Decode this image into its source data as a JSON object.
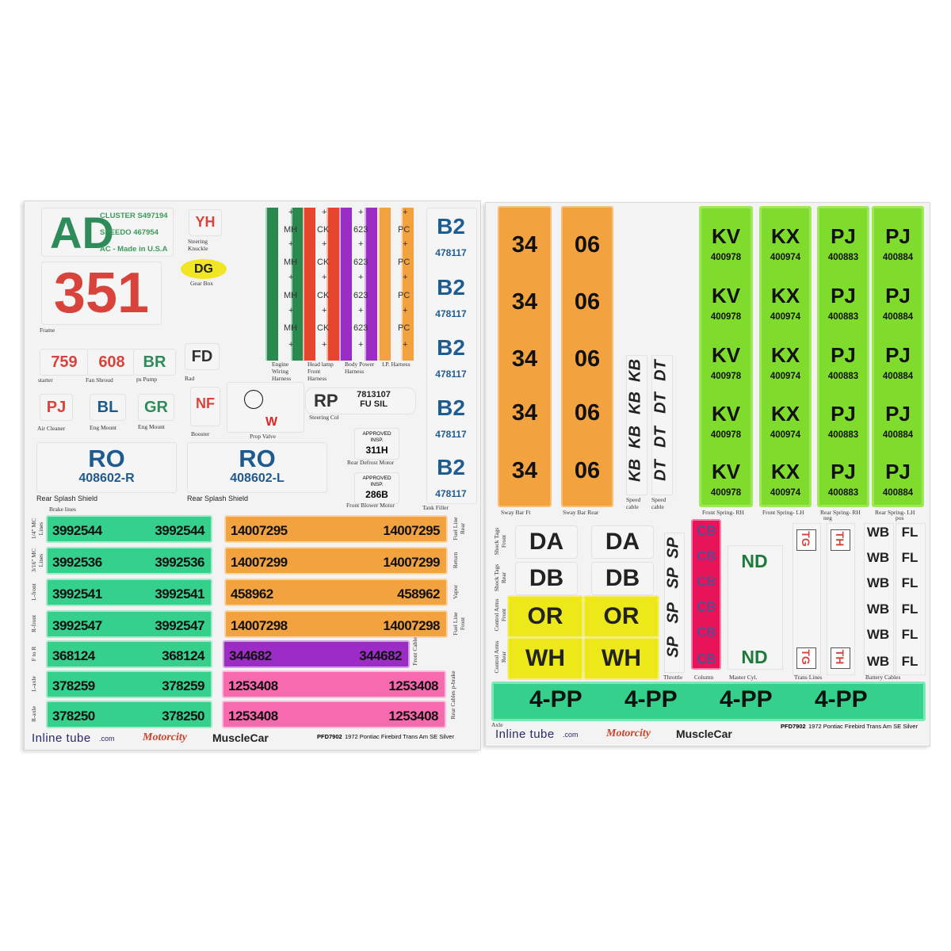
{
  "left_sheet": {
    "ad": {
      "code": "AD",
      "lines": [
        "CLUSTER S497194",
        "SPEEDO 467954",
        "AC - Made in U.S.A"
      ]
    },
    "yh": {
      "code": "YH",
      "label": "Steering Knuckle"
    },
    "dg": {
      "code": "DG",
      "label": "Gear Box"
    },
    "frame": {
      "code": "351",
      "label": "Frame"
    },
    "small_tags": [
      {
        "code": "759",
        "label": "starter"
      },
      {
        "code": "608",
        "label": "Fan Shroud"
      },
      {
        "code": "BR",
        "label": "ps Pump"
      },
      {
        "code": "FD",
        "label": "Rad"
      },
      {
        "code": "PJ",
        "label": "Air Cleaner"
      },
      {
        "code": "BL",
        "label": "Eng Mount"
      },
      {
        "code": "GR",
        "label": "Eng Mount"
      },
      {
        "code": "NF",
        "label": "Booster"
      }
    ],
    "prop_valve": {
      "code": "W",
      "label": "Prop Valve"
    },
    "harness": {
      "codes": [
        "MH",
        "CK",
        "623",
        "PC"
      ],
      "plus": "+",
      "labels": [
        "Engine Wiring Harness",
        "Head lamp Front Harness",
        "Body Power Harness",
        "I.P. Harness"
      ]
    },
    "steering_col": {
      "code": "RP",
      "line1": "7813107",
      "line2": "FU SIL",
      "label": "Steering Col"
    },
    "rear_defrost": {
      "line1": "APPROVED",
      "line2": "INSP.",
      "code": "311H",
      "label": "Rear Defrost Motor"
    },
    "front_blower": {
      "line1": "APPROVED",
      "line2": "INSP.",
      "code": "286B",
      "label": "Front Blower Motor"
    },
    "tank_filler": {
      "code": "B2",
      "number": "478117",
      "label": "Tank Filler"
    },
    "splash": [
      {
        "code": "RO",
        "number": "408602-R",
        "label": "Rear Splash Shield"
      },
      {
        "code": "RO",
        "number": "408602-L",
        "label": "Rear Splash Shield"
      }
    ],
    "brake_lines_title": "Brake lines",
    "brake_lines": [
      {
        "label": "1/4\" MC Lines",
        "number": "3992544"
      },
      {
        "label": "3/16\" MC Lines",
        "number": "3992536"
      },
      {
        "label": "L-front",
        "number": "3992541"
      },
      {
        "label": "R-front",
        "number": "3992547"
      },
      {
        "label": "F to R",
        "number": "368124"
      },
      {
        "label": "L-axle",
        "number": "378259"
      },
      {
        "label": "R-axle",
        "number": "378250"
      }
    ],
    "fuel_lines": [
      {
        "label": "Fuel Line Rear",
        "number": "14007295"
      },
      {
        "label": "Return",
        "number": "14007299"
      },
      {
        "label": "Vapor",
        "number": "458962"
      },
      {
        "label": "Fuel Line Front",
        "number": "14007298"
      }
    ],
    "front_cable": {
      "label": "Front Cable",
      "number": "344682"
    },
    "rear_cables": {
      "label": "Rear Cables p-brake",
      "number": "1253408"
    },
    "footer": {
      "inline": "Inline tube",
      "com": ".com",
      "motorcity": "Motorcity",
      "musclecar": "MuscleCar",
      "part": "PFD7902",
      "desc": "1972 Pontiac Firebird Trans Am SE Silver"
    }
  },
  "right_sheet": {
    "sway_bar_ft": {
      "number": "34",
      "label": "Sway Bar Ft"
    },
    "sway_bar_rear": {
      "number": "06",
      "label": "Sway Bar Rear"
    },
    "speed_cable": [
      {
        "code": "KB",
        "label": "Speed cable"
      },
      {
        "code": "DT",
        "label": "Speed cable"
      }
    ],
    "springs": [
      {
        "code": "KV",
        "number": "400978",
        "label": "Front Spring- RH"
      },
      {
        "code": "KX",
        "number": "400974",
        "label": "Front Spring- LH"
      },
      {
        "code": "PJ",
        "number": "400883",
        "label": "Rear Spring- RH",
        "sub": "neg"
      },
      {
        "code": "PJ",
        "number": "400884",
        "label": "Rear Spring- LH",
        "sub": "pos"
      }
    ],
    "shock_front": {
      "code": "DA",
      "label": "Shock Tags Front"
    },
    "shock_rear": {
      "code": "DB",
      "label": "Shock Tags Rear"
    },
    "control_front": {
      "code": "OR",
      "label": "Control Arms Front"
    },
    "control_rear": {
      "code": "WH",
      "label": "Control Arms Rear"
    },
    "throttle": {
      "code": "SP",
      "label": "Throttle"
    },
    "column": {
      "code": "CB",
      "label": "Column"
    },
    "master_cyl": {
      "code": "ND",
      "label": "Master Cyl."
    },
    "trans_lines": {
      "codes": [
        "TG",
        "TH"
      ],
      "label": "Trans Lines"
    },
    "battery": {
      "codes": [
        "WB",
        "FL"
      ],
      "label": "Battery Cables"
    },
    "axle": {
      "code": "4-PP",
      "label": "Axle"
    },
    "footer": {
      "inline": "Inline tube",
      "com": ".com",
      "motorcity": "Motorcity",
      "musclecar": "MuscleCar",
      "part": "PFD7902",
      "desc": "1972 Pontiac Firebird Trans Am SE Silver"
    }
  },
  "colors": {
    "green_bar": "#34d08c",
    "orange": "#f2a23f",
    "purple": "#9b2cc6",
    "pink": "#f86aae",
    "spring_green": "#7fdc2c",
    "yellow": "#ece81a",
    "column_pink": "#e8145a",
    "blue_text": "#1e5a8e",
    "red_text": "#d8443c",
    "green_text": "#2e8b5a"
  }
}
